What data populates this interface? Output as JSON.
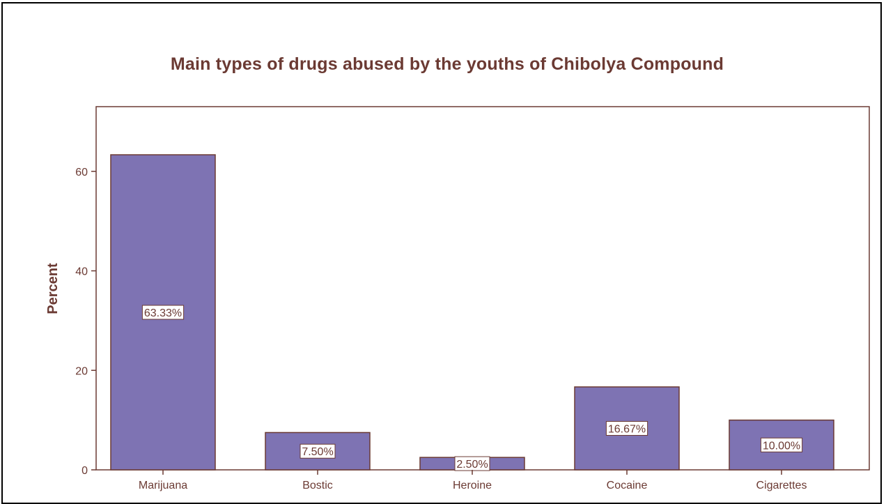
{
  "chart_data": {
    "type": "bar",
    "title": "Main types of drugs abused by the youths of Chibolya Compound",
    "xlabel": "",
    "ylabel": "Percent",
    "categories": [
      "Marijuana",
      "Bostic",
      "Heroine",
      "Cocaine",
      "Cigarettes"
    ],
    "values": [
      63.33,
      7.5,
      2.5,
      16.67,
      10.0
    ],
    "data_labels": [
      "63.33%",
      "7.50%",
      "2.50%",
      "16.67%",
      "10.00%"
    ],
    "ylim": [
      0,
      73
    ],
    "yticks": [
      0,
      20,
      40,
      60
    ],
    "grid": false,
    "legend": "none",
    "colors": {
      "bar_fill": "#7e73b3",
      "bar_stroke": "#6b3a33",
      "axis": "#6b3a33",
      "text": "#6b3a33"
    }
  }
}
